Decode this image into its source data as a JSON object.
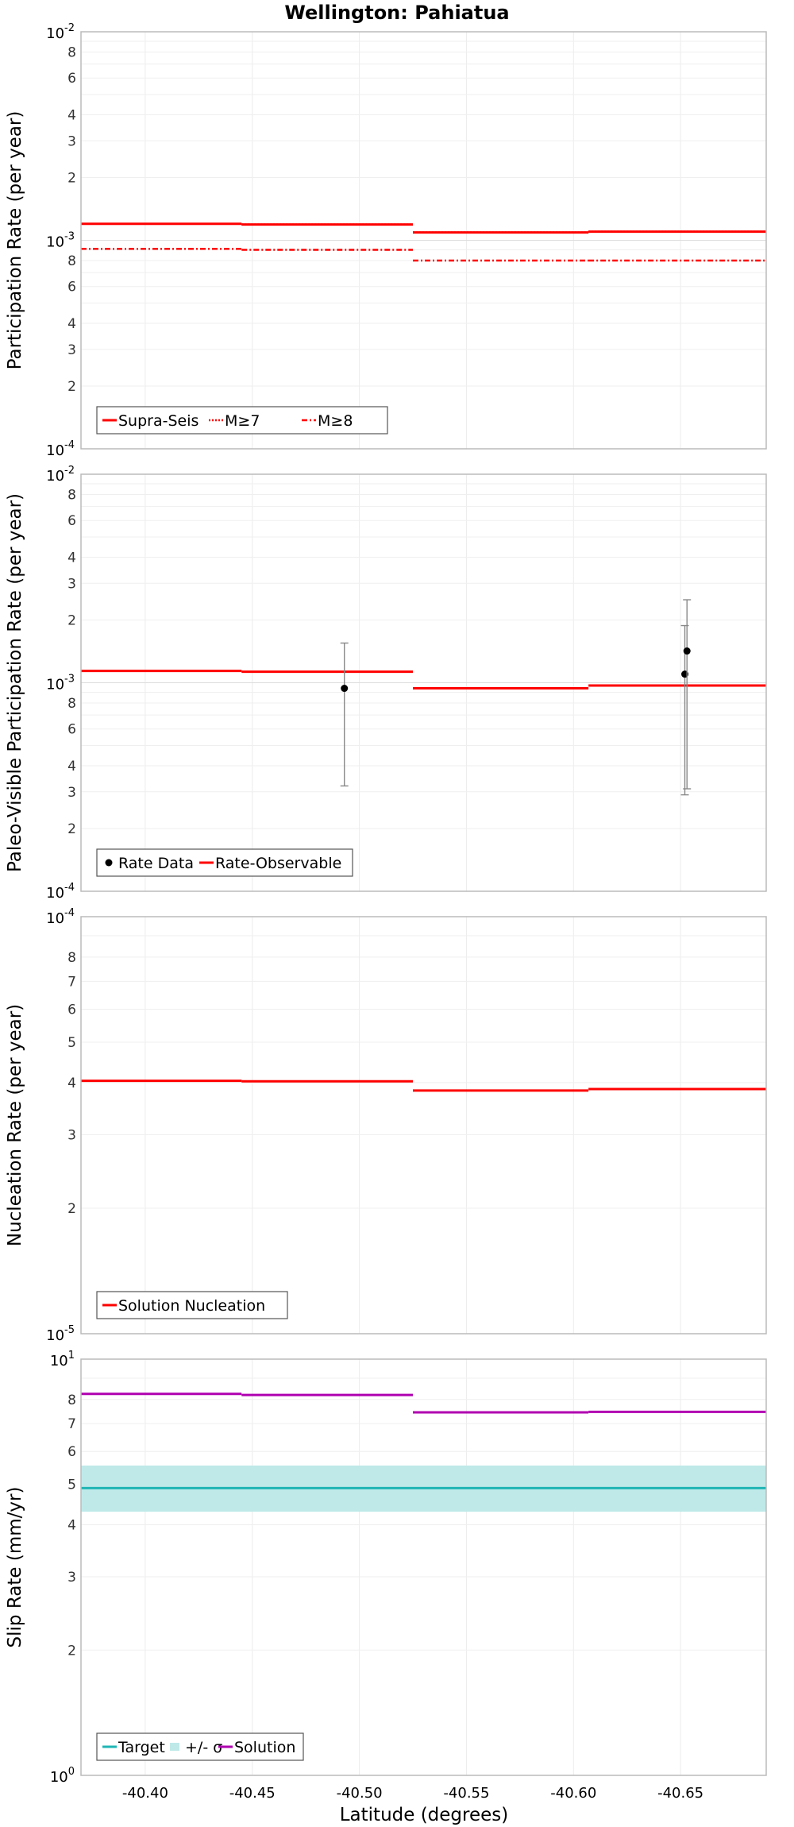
{
  "chart_data": [
    {
      "type": "line",
      "title": "Wellington: Pahiatua",
      "ylabel": "Participation Rate (per year)",
      "yscale": "log",
      "ylim": [
        0.0001,
        0.01
      ],
      "y_major_ticks": [
        {
          "base": "10",
          "exp": "-4"
        },
        {
          "base": "10",
          "exp": "-3"
        },
        {
          "base": "10",
          "exp": "-2"
        }
      ],
      "y_minor_labels": [
        "2",
        "3",
        "4",
        "6",
        "8"
      ],
      "series": [
        {
          "name": "Supra-Seis",
          "style": "solid",
          "color": "#ff0000",
          "segments": [
            [
              -40.37,
              -40.445,
              0.0012
            ],
            [
              -40.445,
              -40.525,
              0.00119
            ],
            [
              -40.525,
              -40.607,
              0.00109
            ],
            [
              -40.607,
              -40.69,
              0.0011
            ]
          ]
        },
        {
          "name": "M≥7",
          "style": "dotted",
          "color": "#ff0000",
          "segments": [
            [
              -40.37,
              -40.445,
              0.0012
            ],
            [
              -40.445,
              -40.525,
              0.00119
            ],
            [
              -40.525,
              -40.607,
              0.00109
            ],
            [
              -40.607,
              -40.69,
              0.0011
            ]
          ]
        },
        {
          "name": "M≥8",
          "style": "dashdot",
          "color": "#ff0000",
          "segments": [
            [
              -40.37,
              -40.445,
              0.00091
            ],
            [
              -40.445,
              -40.525,
              0.0009
            ],
            [
              -40.525,
              -40.607,
              0.0008
            ],
            [
              -40.607,
              -40.69,
              0.0008
            ]
          ]
        }
      ],
      "legend": "bottom-left"
    },
    {
      "type": "line",
      "ylabel": "Paleo-Visible Participation Rate (per year)",
      "yscale": "log",
      "ylim": [
        0.0001,
        0.01
      ],
      "y_major_ticks": [
        {
          "base": "10",
          "exp": "-4"
        },
        {
          "base": "10",
          "exp": "-3"
        },
        {
          "base": "10",
          "exp": "-2"
        }
      ],
      "y_minor_labels": [
        "2",
        "3",
        "4",
        "6",
        "8"
      ],
      "points": {
        "name": "Rate Data",
        "color": "#000000",
        "data": [
          {
            "x": -40.493,
            "y": 0.00094,
            "lo": 0.00032,
            "hi": 0.00155
          },
          {
            "x": -40.652,
            "y": 0.0011,
            "lo": 0.00029,
            "hi": 0.00188
          },
          {
            "x": -40.653,
            "y": 0.00142,
            "lo": 0.00031,
            "hi": 0.0025
          }
        ]
      },
      "series": [
        {
          "name": "Rate-Observable",
          "style": "solid",
          "color": "#ff0000",
          "segments": [
            [
              -40.37,
              -40.445,
              0.00114
            ],
            [
              -40.445,
              -40.525,
              0.00113
            ],
            [
              -40.525,
              -40.607,
              0.00094
            ],
            [
              -40.607,
              -40.69,
              0.00097
            ]
          ]
        }
      ],
      "legend": "bottom-left"
    },
    {
      "type": "line",
      "ylabel": "Nucleation Rate (per year)",
      "yscale": "log",
      "ylim": [
        1e-05,
        0.0001
      ],
      "y_major_ticks": [
        {
          "base": "10",
          "exp": "-5"
        },
        {
          "base": "10",
          "exp": "-4"
        }
      ],
      "y_minor_labels": [
        "2",
        "3",
        "4",
        "5",
        "6",
        "7",
        "8"
      ],
      "series": [
        {
          "name": "Solution Nucleation",
          "style": "solid",
          "color": "#ff0000",
          "segments": [
            [
              -40.37,
              -40.445,
              4.04e-05
            ],
            [
              -40.445,
              -40.525,
              4.03e-05
            ],
            [
              -40.525,
              -40.607,
              3.83e-05
            ],
            [
              -40.607,
              -40.69,
              3.86e-05
            ]
          ]
        }
      ],
      "legend": "bottom-left"
    },
    {
      "type": "line",
      "ylabel": "Slip Rate (mm/yr)",
      "xlabel": "Latitude (degrees)",
      "yscale": "log",
      "ylim": [
        1,
        10
      ],
      "y_major_ticks": [
        {
          "base": "10",
          "exp": "0"
        },
        {
          "base": "10",
          "exp": "1"
        }
      ],
      "y_minor_labels": [
        "2",
        "3",
        "4",
        "5",
        "6",
        "7",
        "8"
      ],
      "xlim": [
        -40.37,
        -40.69
      ],
      "x_ticks": [
        "-40.40",
        "-40.45",
        "-40.50",
        "-40.55",
        "-40.60",
        "-40.65"
      ],
      "band": {
        "name": "+/- σ",
        "color": "#bfe9e9",
        "lo": 4.3,
        "hi": 5.55
      },
      "series": [
        {
          "name": "Target",
          "style": "solid",
          "color": "#1fb5b5",
          "segments": [
            [
              -40.37,
              -40.69,
              4.9
            ]
          ]
        },
        {
          "name": "Solution",
          "style": "solid",
          "color": "#b000b0",
          "segments": [
            [
              -40.37,
              -40.445,
              8.25
            ],
            [
              -40.445,
              -40.525,
              8.2
            ],
            [
              -40.525,
              -40.607,
              7.45
            ],
            [
              -40.607,
              -40.69,
              7.47
            ]
          ]
        }
      ],
      "legend": "bottom-left"
    }
  ]
}
